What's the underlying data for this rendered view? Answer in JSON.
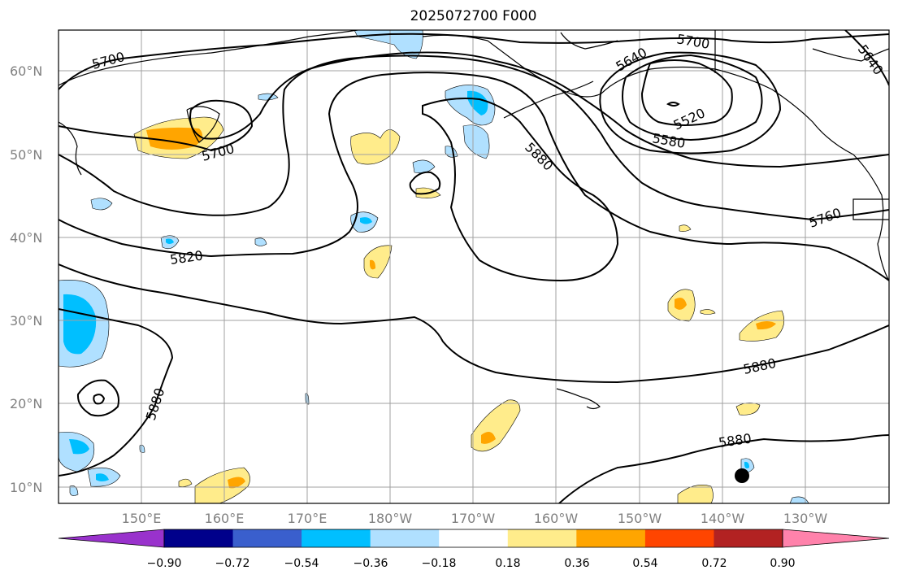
{
  "title": "2025072700 F000",
  "lat_ticks": [
    "60°N",
    "50°N",
    "40°N",
    "30°N",
    "20°N",
    "10°N"
  ],
  "lon_ticks": [
    "150°E",
    "160°E",
    "170°E",
    "180°W",
    "170°W",
    "160°W",
    "150°W",
    "140°W",
    "130°W"
  ],
  "contour_labels": [
    "5700",
    "5700",
    "5700",
    "5640",
    "5520",
    "5580",
    "5880",
    "5820",
    "5760",
    "5880",
    "5880",
    "5880",
    "5640"
  ],
  "colorbar": {
    "ticks": [
      "−0.90",
      "−0.72",
      "−0.54",
      "−0.36",
      "−0.18",
      "0.18",
      "0.36",
      "0.54",
      "0.72",
      "0.90"
    ],
    "colors": [
      "#9932cc",
      "#00008b",
      "#3a5fcd",
      "#00bfff",
      "#b0e0ff",
      "#ffffff",
      "#ffec8b",
      "#ffa500",
      "#ff4500",
      "#b22222",
      "#ff82ab"
    ]
  }
}
